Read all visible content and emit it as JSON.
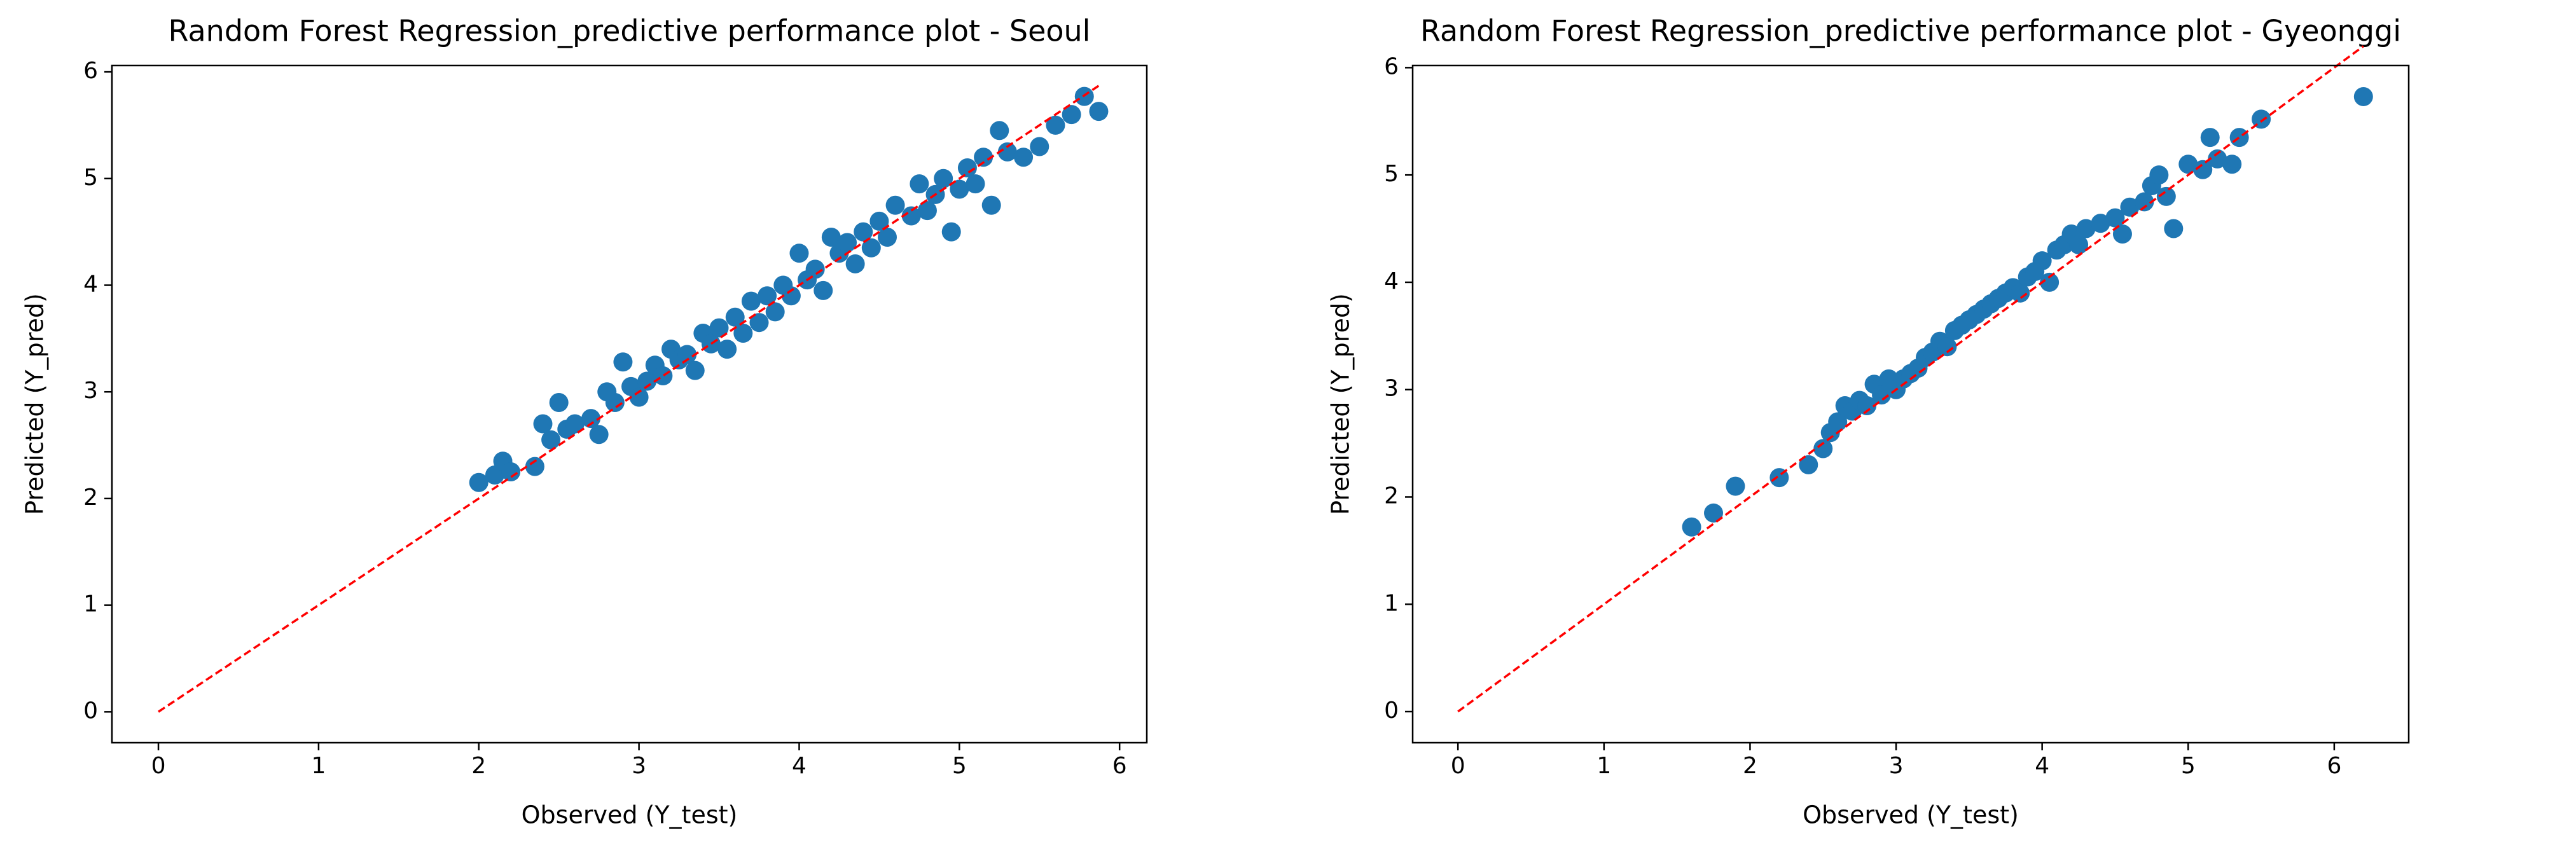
{
  "chart_data": [
    {
      "type": "scatter",
      "title": "Random Forest Regression_predictive performance plot - Seoul",
      "xlabel": "Observed (Y_test)",
      "ylabel": "Predicted (Y_pred)",
      "xlim": [
        -0.29,
        6.17
      ],
      "ylim": [
        -0.29,
        6.06
      ],
      "xticks": [
        0,
        1,
        2,
        3,
        4,
        5,
        6
      ],
      "yticks": [
        0,
        1,
        2,
        3,
        4,
        5,
        6
      ],
      "series": [
        {
          "type": "scatter",
          "color": "#1f77b4",
          "x": [
            2.0,
            2.1,
            2.15,
            2.2,
            2.35,
            2.4,
            2.45,
            2.5,
            2.55,
            2.6,
            2.7,
            2.75,
            2.8,
            2.85,
            2.9,
            2.95,
            3.0,
            3.05,
            3.1,
            3.15,
            3.2,
            3.25,
            3.3,
            3.35,
            3.4,
            3.45,
            3.5,
            3.55,
            3.6,
            3.65,
            3.7,
            3.75,
            3.8,
            3.85,
            3.9,
            3.95,
            4.0,
            4.05,
            4.1,
            4.15,
            4.2,
            4.25,
            4.3,
            4.35,
            4.4,
            4.45,
            4.5,
            4.55,
            4.6,
            4.7,
            4.75,
            4.8,
            4.85,
            4.9,
            4.95,
            5.0,
            5.05,
            5.1,
            5.15,
            5.2,
            5.25,
            5.3,
            5.4,
            5.5,
            5.6,
            5.7,
            5.78,
            5.87
          ],
          "y": [
            2.15,
            2.22,
            2.35,
            2.25,
            2.3,
            2.7,
            2.55,
            2.9,
            2.65,
            2.7,
            2.75,
            2.6,
            3.0,
            2.9,
            3.28,
            3.05,
            2.95,
            3.1,
            3.25,
            3.15,
            3.4,
            3.3,
            3.35,
            3.2,
            3.55,
            3.45,
            3.6,
            3.4,
            3.7,
            3.55,
            3.85,
            3.65,
            3.9,
            3.75,
            4.0,
            3.9,
            4.3,
            4.05,
            4.15,
            3.95,
            4.45,
            4.3,
            4.4,
            4.2,
            4.5,
            4.35,
            4.6,
            4.45,
            4.75,
            4.65,
            4.95,
            4.7,
            4.85,
            5.0,
            4.5,
            4.9,
            5.1,
            4.95,
            5.2,
            4.75,
            5.45,
            5.25,
            5.2,
            5.3,
            5.5,
            5.6,
            5.77,
            5.63
          ]
        },
        {
          "type": "line",
          "color": "#ff0000",
          "linestyle": "dashed",
          "x": [
            0,
            5.87
          ],
          "y": [
            0,
            5.87
          ]
        }
      ]
    },
    {
      "type": "scatter",
      "title": "Random Forest Regression_predictive performance plot - Gyeonggi",
      "xlabel": "Observed (Y_test)",
      "ylabel": "Predicted (Y_pred)",
      "xlim": [
        -0.31,
        6.51
      ],
      "ylim": [
        -0.29,
        6.02
      ],
      "xticks": [
        0,
        1,
        2,
        3,
        4,
        5,
        6
      ],
      "yticks": [
        0,
        1,
        2,
        3,
        4,
        5,
        6
      ],
      "series": [
        {
          "type": "scatter",
          "color": "#1f77b4",
          "x": [
            1.6,
            1.75,
            1.9,
            2.2,
            2.4,
            2.5,
            2.55,
            2.6,
            2.65,
            2.7,
            2.75,
            2.8,
            2.85,
            2.9,
            2.95,
            3.0,
            3.05,
            3.1,
            3.15,
            3.2,
            3.25,
            3.3,
            3.35,
            3.4,
            3.45,
            3.5,
            3.55,
            3.6,
            3.65,
            3.7,
            3.75,
            3.8,
            3.85,
            3.9,
            3.95,
            4.0,
            4.05,
            4.1,
            4.15,
            4.2,
            4.25,
            4.3,
            4.4,
            4.5,
            4.55,
            4.6,
            4.7,
            4.75,
            4.8,
            4.85,
            4.9,
            5.0,
            5.1,
            5.15,
            5.2,
            5.3,
            5.35,
            5.5,
            6.2
          ],
          "y": [
            1.72,
            1.85,
            2.1,
            2.18,
            2.3,
            2.45,
            2.6,
            2.7,
            2.85,
            2.8,
            2.9,
            2.85,
            3.05,
            2.95,
            3.1,
            3.0,
            3.1,
            3.15,
            3.2,
            3.3,
            3.35,
            3.45,
            3.4,
            3.55,
            3.6,
            3.65,
            3.7,
            3.75,
            3.8,
            3.85,
            3.9,
            3.95,
            3.9,
            4.05,
            4.1,
            4.2,
            4.0,
            4.3,
            4.35,
            4.45,
            4.35,
            4.5,
            4.55,
            4.6,
            4.45,
            4.7,
            4.75,
            4.9,
            5.0,
            4.8,
            4.5,
            5.1,
            5.05,
            5.35,
            5.15,
            5.1,
            5.35,
            5.52,
            5.73
          ]
        },
        {
          "type": "line",
          "color": "#ff0000",
          "linestyle": "dashed",
          "x": [
            0,
            6.2
          ],
          "y": [
            0,
            6.2
          ]
        }
      ]
    }
  ]
}
